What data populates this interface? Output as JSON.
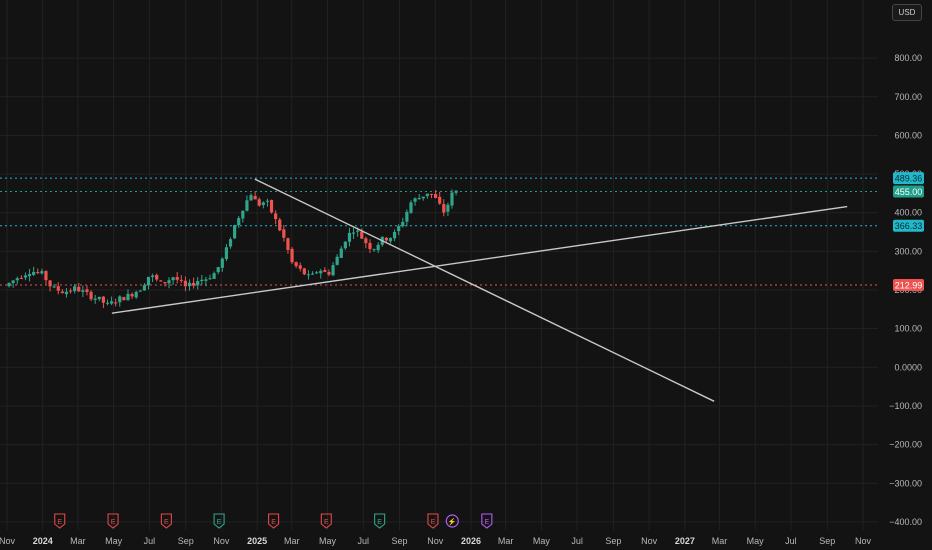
{
  "currency_label": "USD",
  "colors": {
    "background": "#131313",
    "grid": "#222222",
    "up": "#2fa58b",
    "down": "#ef5350",
    "trendline": "#c8c8c8",
    "resistance": "#22b8cc",
    "support": "#ef5350",
    "earnings_icon": "#e04848",
    "earnings_icon_green": "#2fa58b",
    "dividend_icon": "#b45cf2"
  },
  "chart_data": {
    "type": "candlestick",
    "title": "",
    "xlabel": "",
    "ylabel": "",
    "ylim": [
      -400,
      800
    ],
    "grid": true,
    "y_ticks": [
      "800.00",
      "700.00",
      "600.00",
      "500.00",
      "400.00",
      "300.00",
      "200.00",
      "100.00",
      "0.0000",
      "−100.00",
      "−200.00",
      "−300.00",
      "−400.00"
    ],
    "y_tick_values": [
      800,
      700,
      600,
      500,
      400,
      300,
      200,
      100,
      0,
      -100,
      -200,
      -300,
      -400
    ],
    "x_range": [
      "2023-11-01",
      "2027-11-01"
    ],
    "x_ticks": [
      {
        "label": "Nov",
        "date": "2023-11-01",
        "bold": false
      },
      {
        "label": "2024",
        "date": "2024-01-01",
        "bold": true
      },
      {
        "label": "Mar",
        "date": "2024-03-01",
        "bold": false
      },
      {
        "label": "May",
        "date": "2024-05-01",
        "bold": false
      },
      {
        "label": "Jul",
        "date": "2024-07-01",
        "bold": false
      },
      {
        "label": "Sep",
        "date": "2024-09-01",
        "bold": false
      },
      {
        "label": "Nov",
        "date": "2024-11-01",
        "bold": false
      },
      {
        "label": "2025",
        "date": "2025-01-01",
        "bold": true
      },
      {
        "label": "Mar",
        "date": "2025-03-01",
        "bold": false
      },
      {
        "label": "May",
        "date": "2025-05-01",
        "bold": false
      },
      {
        "label": "Jul",
        "date": "2025-07-01",
        "bold": false
      },
      {
        "label": "Sep",
        "date": "2025-09-01",
        "bold": false
      },
      {
        "label": "Nov",
        "date": "2025-11-01",
        "bold": false
      },
      {
        "label": "2026",
        "date": "2026-01-01",
        "bold": true
      },
      {
        "label": "Mar",
        "date": "2026-03-01",
        "bold": false
      },
      {
        "label": "May",
        "date": "2026-05-01",
        "bold": false
      },
      {
        "label": "Jul",
        "date": "2026-07-01",
        "bold": false
      },
      {
        "label": "Sep",
        "date": "2026-09-01",
        "bold": false
      },
      {
        "label": "Nov",
        "date": "2026-11-01",
        "bold": false
      },
      {
        "label": "2027",
        "date": "2027-01-01",
        "bold": true
      },
      {
        "label": "Mar",
        "date": "2027-03-01",
        "bold": false
      },
      {
        "label": "May",
        "date": "2027-05-01",
        "bold": false
      },
      {
        "label": "Jul",
        "date": "2027-07-01",
        "bold": false
      },
      {
        "label": "Sep",
        "date": "2027-09-01",
        "bold": false
      },
      {
        "label": "Nov",
        "date": "2027-11-01",
        "bold": false
      }
    ],
    "price_path": [
      [
        "2023-11-01",
        210
      ],
      [
        "2023-11-25",
        235
      ],
      [
        "2023-12-15",
        250
      ],
      [
        "2024-01-05",
        240
      ],
      [
        "2024-01-20",
        205
      ],
      [
        "2024-02-10",
        195
      ],
      [
        "2024-03-01",
        205
      ],
      [
        "2024-03-25",
        185
      ],
      [
        "2024-04-10",
        175
      ],
      [
        "2024-04-25",
        160
      ],
      [
        "2024-05-10",
        175
      ],
      [
        "2024-05-30",
        185
      ],
      [
        "2024-06-20",
        205
      ],
      [
        "2024-07-05",
        240
      ],
      [
        "2024-07-25",
        215
      ],
      [
        "2024-08-15",
        235
      ],
      [
        "2024-09-05",
        205
      ],
      [
        "2024-09-25",
        225
      ],
      [
        "2024-10-10",
        230
      ],
      [
        "2024-10-25",
        245
      ],
      [
        "2024-11-10",
        290
      ],
      [
        "2024-11-25",
        360
      ],
      [
        "2024-12-10",
        410
      ],
      [
        "2024-12-25",
        450
      ],
      [
        "2025-01-05",
        420
      ],
      [
        "2025-01-20",
        430
      ],
      [
        "2025-02-05",
        380
      ],
      [
        "2025-02-20",
        330
      ],
      [
        "2025-03-05",
        270
      ],
      [
        "2025-03-20",
        250
      ],
      [
        "2025-04-05",
        230
      ],
      [
        "2025-04-20",
        255
      ],
      [
        "2025-05-05",
        240
      ],
      [
        "2025-05-20",
        280
      ],
      [
        "2025-06-05",
        335
      ],
      [
        "2025-06-20",
        360
      ],
      [
        "2025-07-05",
        330
      ],
      [
        "2025-07-20",
        305
      ],
      [
        "2025-08-05",
        330
      ],
      [
        "2025-08-25",
        340
      ],
      [
        "2025-09-10",
        380
      ],
      [
        "2025-09-25",
        430
      ],
      [
        "2025-10-10",
        440
      ],
      [
        "2025-10-25",
        455
      ],
      [
        "2025-11-05",
        435
      ],
      [
        "2025-11-20",
        400
      ],
      [
        "2025-12-05",
        455
      ]
    ],
    "trendlines": [
      {
        "name": "descending",
        "from": {
          "date": "2024-12-28",
          "value": 487
        },
        "to": {
          "date": "2027-02-20",
          "value": -88
        }
      },
      {
        "name": "ascending",
        "from": {
          "date": "2024-04-28",
          "value": 140
        },
        "to": {
          "date": "2027-10-05",
          "value": 416
        }
      }
    ],
    "horizontal_levels": [
      {
        "name": "high",
        "value": 489.36,
        "label": "489.36",
        "style": "dotted",
        "color": "#22b8cc"
      },
      {
        "name": "last",
        "value": 455.0,
        "label": "455.00",
        "style": "dotted",
        "color": "#1f9f8a"
      },
      {
        "name": "mid",
        "value": 366.33,
        "label": "366.33",
        "style": "dotted",
        "color": "#22b8cc"
      },
      {
        "name": "low",
        "value": 212.99,
        "label": "212.99",
        "style": "dotted",
        "color": "#ef5350"
      }
    ],
    "events": [
      {
        "date": "2024-01-30",
        "glyph": "E",
        "kind": "earnings-red"
      },
      {
        "date": "2024-04-30",
        "glyph": "E",
        "kind": "earnings-red"
      },
      {
        "date": "2024-07-30",
        "glyph": "E",
        "kind": "earnings-red"
      },
      {
        "date": "2024-10-28",
        "glyph": "E",
        "kind": "earnings-green"
      },
      {
        "date": "2025-01-29",
        "glyph": "E",
        "kind": "earnings-red"
      },
      {
        "date": "2025-04-29",
        "glyph": "E",
        "kind": "earnings-red"
      },
      {
        "date": "2025-07-29",
        "glyph": "E",
        "kind": "earnings-green"
      },
      {
        "date": "2025-10-28",
        "glyph": "E",
        "kind": "earnings-red"
      },
      {
        "date": "2025-11-30",
        "glyph": "⚡",
        "kind": "split"
      },
      {
        "date": "2026-01-28",
        "glyph": "E",
        "kind": "earnings-purple"
      }
    ]
  }
}
